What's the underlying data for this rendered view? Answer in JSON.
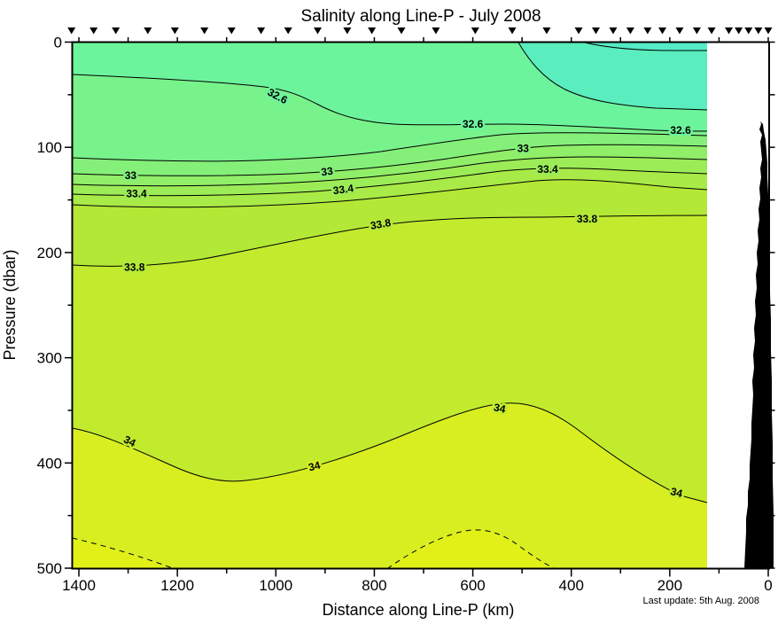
{
  "title": "Salinity along Line-P - July 2008",
  "footnote": "Last update: 5th Aug. 2008",
  "axes": {
    "x": {
      "title": "Distance along Line-P (km)",
      "major_ticks": [
        1400,
        1200,
        1000,
        800,
        600,
        400,
        200,
        0
      ],
      "minor_step_km": 100,
      "range_km": [
        1400,
        0
      ]
    },
    "y": {
      "title": "Pressure (dbar)",
      "major_ticks": [
        0,
        100,
        200,
        300,
        400,
        500
      ],
      "minor_step_dbar": 50,
      "range_dbar": [
        0,
        500
      ]
    }
  },
  "chart_data": {
    "type": "heatmap",
    "variant": "filled-contour-section",
    "title": "Salinity along Line-P - July 2008",
    "xlabel": "Distance along Line-P (km)",
    "ylabel": "Pressure (dbar)",
    "x_range_km": [
      1400,
      0
    ],
    "y_range_dbar": [
      0,
      500
    ],
    "x_axis_reversed": true,
    "contour_interval": 0.2,
    "solid_contour_levels": [
      32.2,
      32.4,
      32.6,
      32.8,
      33,
      33.2,
      33.4,
      33.6,
      33.8,
      34
    ],
    "dashed_contour_levels": [
      34.2
    ],
    "data_extent_km": [
      1410,
      125
    ],
    "station_markers_km": [
      1415,
      1370,
      1325,
      1260,
      1205,
      1145,
      1090,
      1030,
      975,
      915,
      855,
      805,
      745,
      675,
      595,
      520,
      450,
      385,
      350,
      315,
      280,
      245,
      215,
      180,
      145,
      115,
      80,
      60,
      40,
      20,
      0
    ],
    "bands": [
      {
        "range": "<32.2",
        "color": "#55ECC6"
      },
      {
        "range": "32.2-32.4",
        "color": "#5AEDBE"
      },
      {
        "range": "32.4-32.6",
        "color": "#6CF49D"
      },
      {
        "range": "32.6-32.8",
        "color": "#78F28B"
      },
      {
        "range": "32.8-33.0",
        "color": "#84F07A"
      },
      {
        "range": "33.0-33.2",
        "color": "#90EE69"
      },
      {
        "range": "33.2-33.4",
        "color": "#9CEC58"
      },
      {
        "range": "33.4-33.6",
        "color": "#A8EA47"
      },
      {
        "range": "33.6-33.8",
        "color": "#B4E836"
      },
      {
        "range": "33.8-34.0",
        "color": "#C2EB2E"
      },
      {
        "range": "34.0-34.2",
        "color": "#D8EE20"
      },
      {
        "range": ">34.2",
        "color": "#E1F117"
      }
    ],
    "contour_labels": [
      {
        "text": "32.6",
        "km": 1000,
        "dbar": 51,
        "rot": 28,
        "halo": "#6CF49D"
      },
      {
        "text": "32.6",
        "km": 600,
        "dbar": 78,
        "rot": 0,
        "halo": "#6CF49D"
      },
      {
        "text": "32.6",
        "km": 178,
        "dbar": 84,
        "rot": 0,
        "halo": "#6CF49D"
      },
      {
        "text": "33",
        "km": 1295,
        "dbar": 127,
        "rot": 0,
        "halo": "#84F07A"
      },
      {
        "text": "33",
        "km": 895,
        "dbar": 123,
        "rot": -8,
        "halo": "#84F07A"
      },
      {
        "text": "33",
        "km": 498,
        "dbar": 101,
        "rot": 0,
        "halo": "#84F07A"
      },
      {
        "text": "33.4",
        "km": 1283,
        "dbar": 144,
        "rot": 0,
        "halo": "#9CEC58"
      },
      {
        "text": "33.4",
        "km": 862,
        "dbar": 140,
        "rot": -8,
        "halo": "#9CEC58"
      },
      {
        "text": "33.4",
        "km": 448,
        "dbar": 121,
        "rot": 0,
        "halo": "#9CEC58"
      },
      {
        "text": "33.8",
        "km": 1287,
        "dbar": 214,
        "rot": 0,
        "halo": "#B4E836"
      },
      {
        "text": "33.8",
        "km": 786,
        "dbar": 173,
        "rot": -10,
        "halo": "#B4E836"
      },
      {
        "text": "33.8",
        "km": 368,
        "dbar": 168,
        "rot": 0,
        "halo": "#B4E836"
      },
      {
        "text": "34",
        "km": 1300,
        "dbar": 379,
        "rot": 26,
        "halo": "#C2EB2E"
      },
      {
        "text": "34",
        "km": 920,
        "dbar": 403,
        "rot": -14,
        "halo": "#D8EE20"
      },
      {
        "text": "34",
        "km": 547,
        "dbar": 348,
        "rot": 12,
        "halo": "#C2EB2E"
      },
      {
        "text": "34",
        "km": 188,
        "dbar": 428,
        "rot": 14,
        "halo": "#C2EB2E"
      }
    ],
    "bathymetry_color": "#000000"
  }
}
